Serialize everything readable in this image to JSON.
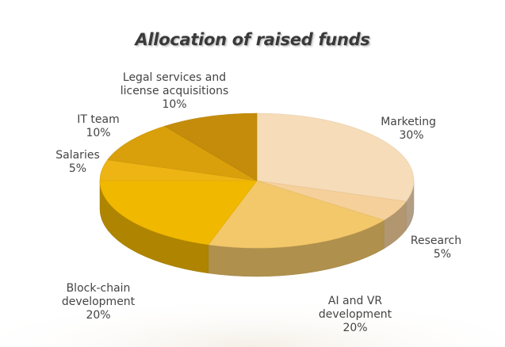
{
  "chart_data": {
    "type": "pie",
    "title": "Allocation of raised funds",
    "slices": [
      {
        "name": "Marketing",
        "line1": "Marketing",
        "line2": "",
        "pct_label": "30%",
        "value": 30,
        "color": "#f6dcb8"
      },
      {
        "name": "Research",
        "line1": "Research",
        "line2": "",
        "pct_label": "5%",
        "value": 5,
        "color": "#f6d09a"
      },
      {
        "name": "AI and VR development",
        "line1": "AI and VR",
        "line2": "development",
        "pct_label": "20%",
        "value": 20,
        "color": "#f3c86a"
      },
      {
        "name": "Block-chain development",
        "line1": "Block-chain",
        "line2": "development",
        "pct_label": "20%",
        "value": 20,
        "color": "#f1b800"
      },
      {
        "name": "Salaries",
        "line1": "Salaries",
        "line2": "",
        "pct_label": "5%",
        "value": 5,
        "color": "#eeb414"
      },
      {
        "name": "IT team",
        "line1": "IT team",
        "line2": "",
        "pct_label": "10%",
        "value": 10,
        "color": "#d9a00c"
      },
      {
        "name": "Legal services and license acquisitions",
        "line1": "Legal services and",
        "line2": "license acquisitions",
        "pct_label": "10%",
        "value": 10,
        "color": "#c48c0a"
      }
    ],
    "legend": "none",
    "style": "3d-tilted"
  }
}
